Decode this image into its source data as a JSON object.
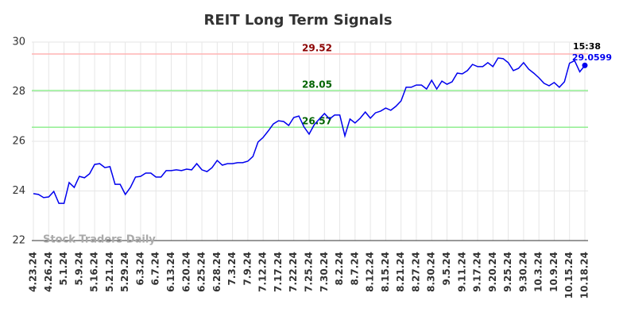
{
  "chart_data": {
    "type": "line",
    "title": "REIT Long Term Signals",
    "categories": [
      "4.23.24",
      null,
      null,
      "4.26.24",
      null,
      null,
      "5.1.24",
      null,
      null,
      "5.9.24",
      null,
      null,
      "5.16.24",
      null,
      null,
      "5.21.24",
      null,
      null,
      "5.29.24",
      null,
      null,
      "6.3.24",
      null,
      null,
      "6.7.24",
      null,
      null,
      "6.13.24",
      null,
      null,
      "6.20.24",
      null,
      null,
      "6.25.24",
      null,
      null,
      "6.28.24",
      null,
      null,
      "7.3.24",
      null,
      null,
      "7.9.24",
      null,
      null,
      "7.12.24",
      null,
      null,
      "7.17.24",
      null,
      null,
      "7.22.24",
      null,
      null,
      "7.25.24",
      null,
      null,
      "7.30.24",
      null,
      null,
      "8.2.24",
      null,
      null,
      "8.7.24",
      null,
      null,
      "8.12.24",
      null,
      null,
      "8.15.24",
      null,
      null,
      "8.21.24",
      null,
      null,
      "8.27.24",
      null,
      null,
      "8.30.24",
      null,
      null,
      "9.5.24",
      null,
      null,
      "9.11.24",
      null,
      null,
      "9.17.24",
      null,
      null,
      "9.20.24",
      null,
      null,
      "9.25.24",
      null,
      null,
      "9.30.24",
      null,
      null,
      "10.3.24",
      null,
      null,
      "10.9.24",
      null,
      null,
      "10.15.24",
      null,
      null,
      "10.18.24"
    ],
    "values": [
      23.89,
      23.86,
      23.73,
      23.76,
      23.98,
      23.5,
      23.5,
      24.34,
      24.14,
      24.59,
      24.53,
      24.69,
      25.07,
      25.1,
      24.94,
      24.98,
      24.27,
      24.27,
      23.86,
      24.14,
      24.56,
      24.59,
      24.72,
      24.72,
      24.56,
      24.56,
      24.82,
      24.82,
      24.85,
      24.82,
      24.88,
      24.85,
      25.1,
      24.85,
      24.78,
      24.94,
      25.23,
      25.04,
      25.1,
      25.1,
      25.14,
      25.14,
      25.2,
      25.39,
      25.97,
      26.16,
      26.42,
      26.7,
      26.83,
      26.8,
      26.64,
      26.96,
      27.02,
      26.58,
      26.29,
      26.67,
      26.9,
      27.12,
      26.9,
      27.06,
      27.06,
      26.22,
      26.9,
      26.74,
      26.93,
      27.18,
      26.93,
      27.15,
      27.22,
      27.34,
      27.25,
      27.41,
      27.63,
      28.18,
      28.18,
      28.27,
      28.27,
      28.11,
      28.46,
      28.11,
      28.43,
      28.3,
      28.4,
      28.75,
      28.72,
      28.85,
      29.1,
      29.01,
      29.01,
      29.17,
      29.01,
      29.36,
      29.33,
      29.17,
      28.85,
      28.94,
      29.17,
      28.91,
      28.75,
      28.56,
      28.34,
      28.24,
      28.37,
      28.18,
      28.4,
      29.15,
      29.25,
      28.8,
      29.0599
    ],
    "color": "#0000ee",
    "ylim": [
      22,
      30
    ],
    "yticks": [
      22,
      24,
      26,
      28,
      30
    ],
    "grid": true,
    "hlines": [
      {
        "value": 29.52,
        "color": "#ffb3b3",
        "label_color": "#8b0000"
      },
      {
        "value": 28.05,
        "color": "#90ee90",
        "label_color": "#006400"
      },
      {
        "value": 26.57,
        "color": "#90ee90",
        "label_color": "#006400"
      }
    ],
    "time_label": "15:38",
    "last_value_color": "#0000ee",
    "watermark": "Stock Traders Daily"
  }
}
